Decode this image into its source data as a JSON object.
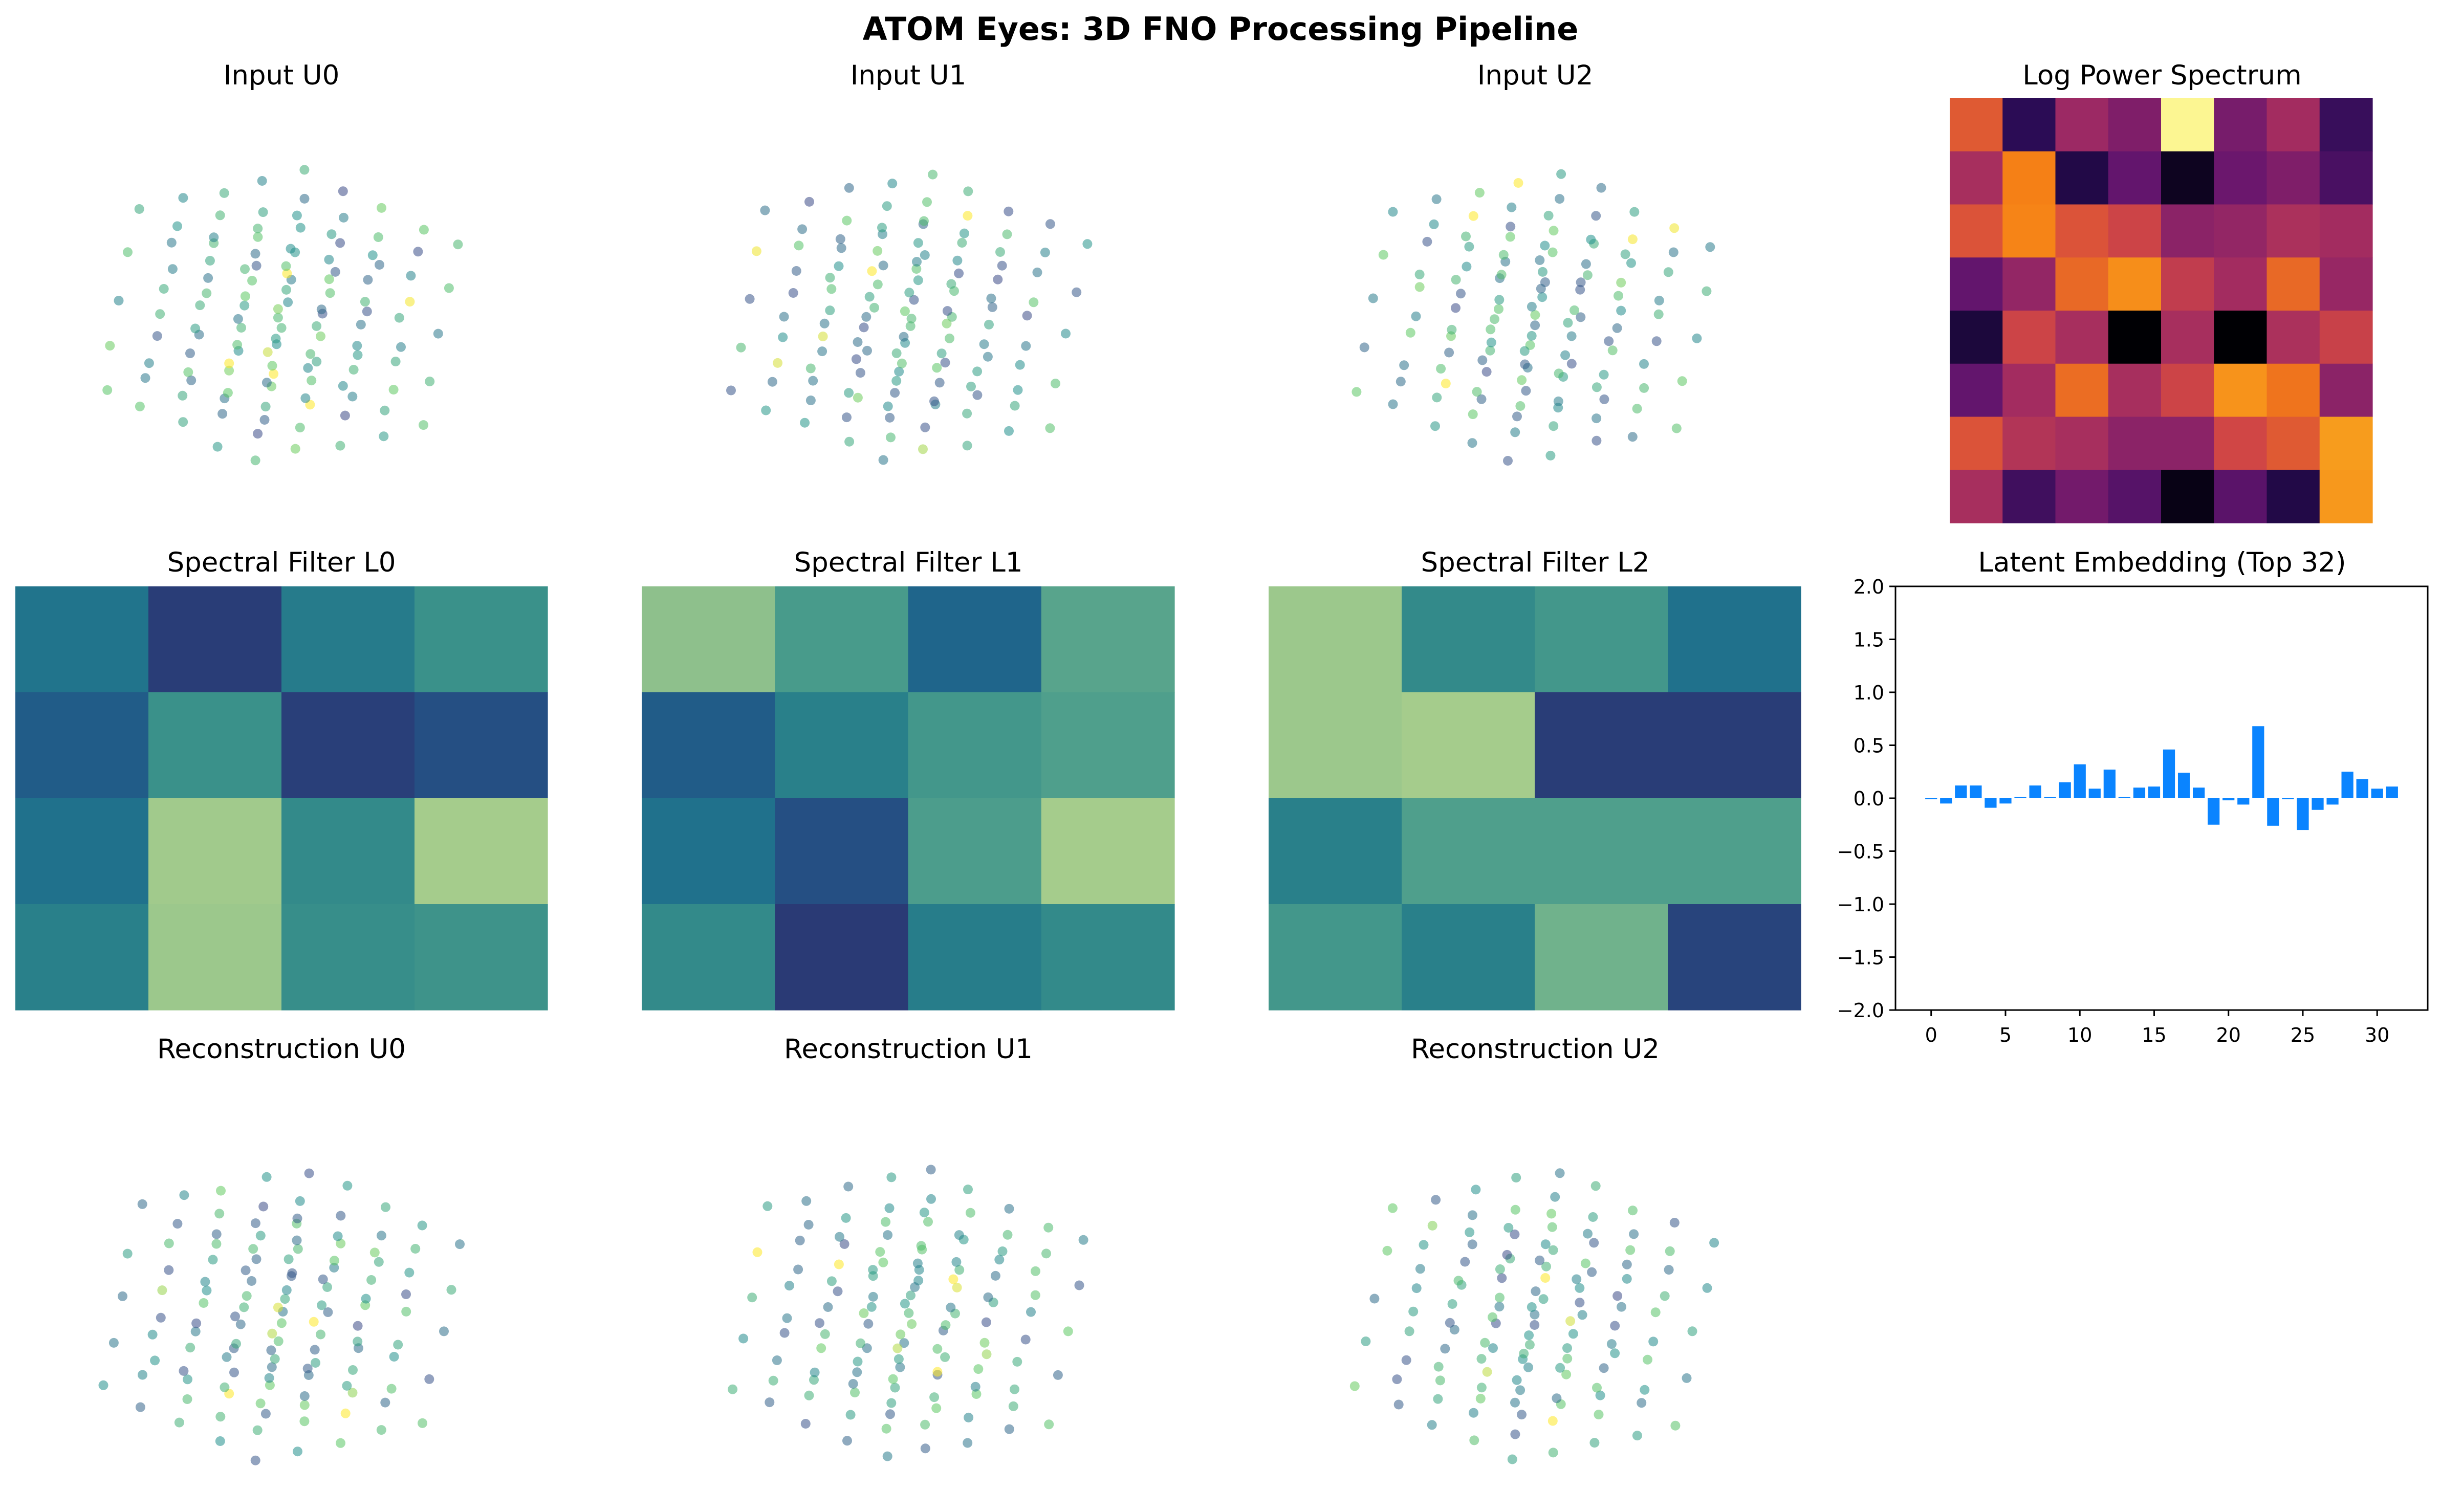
{
  "figure": {
    "title": "ATOM Eyes: 3D FNO Processing Pipeline"
  },
  "colors": {
    "bar": "#0a84ff",
    "background": "#ffffff",
    "axis": "#000000"
  },
  "chart_data": [
    {
      "id": "input-u0",
      "type": "scatter",
      "title": "Input U0",
      "colormap": "viridis",
      "note_seed": 11
    },
    {
      "id": "input-u1",
      "type": "scatter",
      "title": "Input U1",
      "colormap": "viridis",
      "note_seed": 23
    },
    {
      "id": "input-u2",
      "type": "scatter",
      "title": "Input U2",
      "colormap": "viridis",
      "note_seed": 37
    },
    {
      "id": "log-power-spectrum",
      "type": "heatmap",
      "title": "Log Power Spectrum",
      "colormap": "inferno",
      "values": [
        [
          0.62,
          0.15,
          0.42,
          0.35,
          0.98,
          0.33,
          0.44,
          0.18
        ],
        [
          0.45,
          0.72,
          0.12,
          0.28,
          0.05,
          0.3,
          0.35,
          0.22
        ],
        [
          0.6,
          0.73,
          0.6,
          0.55,
          0.38,
          0.4,
          0.46,
          0.44
        ],
        [
          0.28,
          0.4,
          0.66,
          0.75,
          0.52,
          0.44,
          0.66,
          0.41
        ],
        [
          0.1,
          0.55,
          0.45,
          0.0,
          0.45,
          0.0,
          0.46,
          0.54
        ],
        [
          0.28,
          0.44,
          0.67,
          0.45,
          0.55,
          0.76,
          0.69,
          0.38
        ],
        [
          0.6,
          0.48,
          0.45,
          0.38,
          0.38,
          0.56,
          0.62,
          0.78
        ],
        [
          0.45,
          0.2,
          0.32,
          0.25,
          0.03,
          0.26,
          0.12,
          0.77
        ]
      ]
    },
    {
      "id": "spectral-filter-l0",
      "type": "heatmap",
      "title": "Spectral Filter L0",
      "colormap": "crest",
      "values": [
        [
          0.3,
          0.05,
          0.35,
          0.5
        ],
        [
          0.18,
          0.5,
          0.06,
          0.12
        ],
        [
          0.28,
          0.95,
          0.45,
          0.98
        ],
        [
          0.38,
          0.92,
          0.48,
          0.52
        ]
      ]
    },
    {
      "id": "spectral-filter-l1",
      "type": "heatmap",
      "title": "Spectral Filter L1",
      "colormap": "crest",
      "values": [
        [
          0.85,
          0.58,
          0.22,
          0.66
        ],
        [
          0.18,
          0.38,
          0.55,
          0.62
        ],
        [
          0.28,
          0.12,
          0.6,
          0.98
        ],
        [
          0.45,
          0.04,
          0.36,
          0.45
        ]
      ]
    },
    {
      "id": "spectral-filter-l2",
      "type": "heatmap",
      "title": "Spectral Filter L2",
      "colormap": "crest",
      "values": [
        [
          0.92,
          0.45,
          0.55,
          0.28
        ],
        [
          0.92,
          0.98,
          0.05,
          0.05
        ],
        [
          0.38,
          0.62,
          0.62,
          0.62
        ],
        [
          0.55,
          0.38,
          0.76,
          0.08
        ]
      ]
    },
    {
      "id": "latent-embedding",
      "type": "bar",
      "title": "Latent Embedding (Top 32)",
      "ylim": [
        -2.0,
        2.0
      ],
      "xlim": [
        -2.4,
        33.4
      ],
      "yticks": [
        "2.0",
        "1.5",
        "1.0",
        "0.5",
        "0.0",
        "−0.5",
        "−1.0",
        "−1.5",
        "−2.0"
      ],
      "ytick_values": [
        2.0,
        1.5,
        1.0,
        0.5,
        0.0,
        -0.5,
        -1.0,
        -1.5,
        -2.0
      ],
      "xticks": [
        "0",
        "5",
        "10",
        "15",
        "20",
        "25",
        "30"
      ],
      "xtick_values": [
        0,
        5,
        10,
        15,
        20,
        25,
        30
      ],
      "x": [
        0,
        1,
        2,
        3,
        4,
        5,
        6,
        7,
        8,
        9,
        10,
        11,
        12,
        13,
        14,
        15,
        16,
        17,
        18,
        19,
        20,
        21,
        22,
        23,
        24,
        25,
        26,
        27,
        28,
        29,
        30,
        31
      ],
      "values": [
        -0.01,
        -0.05,
        0.12,
        0.12,
        -0.09,
        -0.05,
        0.01,
        0.12,
        0.01,
        0.15,
        0.32,
        0.09,
        0.27,
        0.01,
        0.1,
        0.11,
        0.46,
        0.24,
        0.1,
        -0.25,
        -0.02,
        -0.06,
        0.68,
        -0.26,
        -0.01,
        -0.3,
        -0.11,
        -0.06,
        0.25,
        0.18,
        0.09,
        0.11
      ]
    },
    {
      "id": "reconstruction-u0",
      "type": "scatter",
      "title": "Reconstruction U0",
      "colormap": "viridis",
      "note_seed": 53
    },
    {
      "id": "reconstruction-u1",
      "type": "scatter",
      "title": "Reconstruction U1",
      "colormap": "viridis",
      "note_seed": 71
    },
    {
      "id": "reconstruction-u2",
      "type": "scatter",
      "title": "Reconstruction U2",
      "colormap": "viridis",
      "note_seed": 89
    }
  ]
}
